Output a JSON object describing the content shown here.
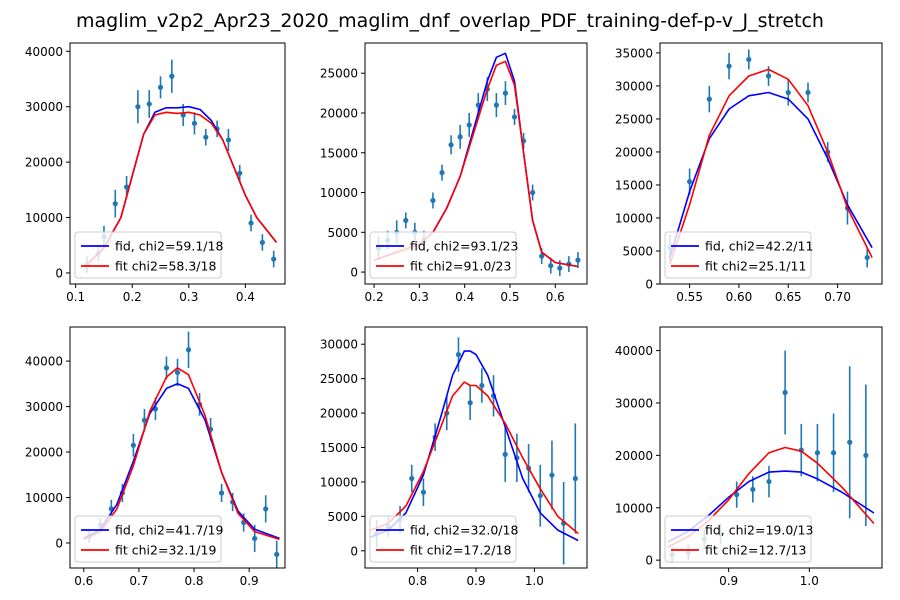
{
  "figure": {
    "title": "maglim_v2p2_Apr23_2020_maglim_dnf_overlap_PDF_training-def-p-v_J_stretch"
  },
  "colors": {
    "fid": "#0000ff",
    "fit": "#ff0000",
    "data": "#1f77b4"
  },
  "chart_data": [
    {
      "type": "scatter",
      "xlim": [
        0.09,
        0.47
      ],
      "ylim": [
        -2000,
        41500
      ],
      "xticks": [
        "0.1",
        "0.2",
        "0.3",
        "0.4"
      ],
      "xtick_values": [
        0.1,
        0.2,
        0.3,
        0.4
      ],
      "yticks": [
        "0",
        "10000",
        "20000",
        "30000",
        "40000"
      ],
      "ytick_values": [
        0,
        10000,
        20000,
        30000,
        40000
      ],
      "legend": {
        "placement": "lower-left",
        "entries": [
          "fid, chi2=59.1/18",
          "fit chi2=58.3/18"
        ]
      },
      "points": {
        "x": [
          0.12,
          0.14,
          0.15,
          0.17,
          0.19,
          0.21,
          0.23,
          0.25,
          0.27,
          0.29,
          0.31,
          0.33,
          0.35,
          0.37,
          0.39,
          0.41,
          0.43,
          0.45
        ],
        "y": [
          1500,
          3500,
          6500,
          12500,
          15500,
          30000,
          30500,
          33500,
          35500,
          28500,
          27000,
          24500,
          26000,
          24000,
          18000,
          9000,
          5500,
          2500
        ],
        "err": [
          1500,
          1500,
          2000,
          2500,
          2000,
          3000,
          2500,
          2000,
          3000,
          2000,
          2000,
          1500,
          1500,
          2000,
          1500,
          1500,
          1500,
          1500
        ]
      },
      "series": [
        {
          "name": "fid, chi2=59.1/18",
          "x": [
            0.12,
            0.15,
            0.18,
            0.2,
            0.22,
            0.24,
            0.26,
            0.28,
            0.3,
            0.32,
            0.34,
            0.36,
            0.38,
            0.4,
            0.42,
            0.455
          ],
          "y": [
            1500,
            4500,
            10000,
            17500,
            25000,
            29000,
            29800,
            29800,
            30000,
            29500,
            27500,
            24000,
            19000,
            14000,
            10000,
            5500
          ]
        },
        {
          "name": "fit chi2=58.3/18",
          "x": [
            0.12,
            0.15,
            0.18,
            0.2,
            0.22,
            0.24,
            0.26,
            0.28,
            0.3,
            0.32,
            0.34,
            0.36,
            0.38,
            0.4,
            0.42,
            0.455
          ],
          "y": [
            1500,
            4500,
            10000,
            17500,
            25000,
            28500,
            29000,
            28800,
            29000,
            28500,
            27000,
            24000,
            19000,
            14000,
            10000,
            5500
          ]
        }
      ]
    },
    {
      "type": "scatter",
      "xlim": [
        0.18,
        0.67
      ],
      "ylim": [
        -1500,
        28800
      ],
      "xticks": [
        "0.2",
        "0.3",
        "0.4",
        "0.5",
        "0.6"
      ],
      "xtick_values": [
        0.2,
        0.3,
        0.4,
        0.5,
        0.6
      ],
      "yticks": [
        "0",
        "5000",
        "10000",
        "15000",
        "20000",
        "25000"
      ],
      "ytick_values": [
        0,
        5000,
        10000,
        15000,
        20000,
        25000
      ],
      "legend": {
        "placement": "lower-left",
        "entries": [
          "fid, chi2=93.1/23",
          "fit chi2=91.0/23"
        ]
      },
      "points": {
        "x": [
          0.21,
          0.23,
          0.25,
          0.27,
          0.29,
          0.31,
          0.33,
          0.35,
          0.37,
          0.39,
          0.41,
          0.43,
          0.45,
          0.47,
          0.49,
          0.51,
          0.53,
          0.55,
          0.57,
          0.59,
          0.61,
          0.63,
          0.65
        ],
        "y": [
          3000,
          4000,
          5000,
          6500,
          5000,
          4000,
          9000,
          12500,
          16000,
          17000,
          18500,
          21000,
          23000,
          21000,
          22500,
          19500,
          16500,
          10000,
          2000,
          800,
          500,
          1000,
          1500
        ],
        "err": [
          1500,
          1200,
          1500,
          1000,
          1200,
          1200,
          1000,
          1000,
          1200,
          1500,
          1500,
          1500,
          1500,
          1500,
          1500,
          1000,
          1000,
          1000,
          1000,
          1000,
          1000,
          1000,
          1000
        ]
      },
      "series": [
        {
          "name": "fid, chi2=93.1/23",
          "x": [
            0.2,
            0.25,
            0.3,
            0.33,
            0.36,
            0.39,
            0.42,
            0.45,
            0.47,
            0.49,
            0.51,
            0.53,
            0.55,
            0.57,
            0.6,
            0.65
          ],
          "y": [
            1500,
            2500,
            3500,
            5000,
            8000,
            12000,
            18000,
            24000,
            27000,
            27500,
            24000,
            15000,
            6500,
            2500,
            1200,
            700
          ]
        },
        {
          "name": "fit chi2=91.0/23",
          "x": [
            0.2,
            0.25,
            0.3,
            0.33,
            0.36,
            0.39,
            0.42,
            0.45,
            0.47,
            0.49,
            0.51,
            0.53,
            0.55,
            0.57,
            0.6,
            0.65
          ],
          "y": [
            1500,
            2500,
            3500,
            5000,
            8000,
            12000,
            17500,
            23000,
            26000,
            26500,
            23500,
            15000,
            6500,
            2500,
            1200,
            700
          ]
        }
      ]
    },
    {
      "type": "scatter",
      "xlim": [
        0.52,
        0.745
      ],
      "ylim": [
        0,
        36500
      ],
      "xticks": [
        "0.55",
        "0.60",
        "0.65",
        "0.70"
      ],
      "xtick_values": [
        0.55,
        0.6,
        0.65,
        0.7
      ],
      "yticks": [
        "0",
        "5000",
        "10000",
        "15000",
        "20000",
        "25000",
        "30000",
        "35000"
      ],
      "ytick_values": [
        0,
        5000,
        10000,
        15000,
        20000,
        25000,
        30000,
        35000
      ],
      "legend": {
        "placement": "lower-left",
        "entries": [
          "fid, chi2=42.2/11",
          "fit chi2=25.1/11"
        ]
      },
      "points": {
        "x": [
          0.53,
          0.55,
          0.57,
          0.59,
          0.61,
          0.63,
          0.65,
          0.67,
          0.69,
          0.71,
          0.73
        ],
        "y": [
          5500,
          15500,
          28000,
          33000,
          34000,
          31500,
          29000,
          29000,
          20000,
          11500,
          4000
        ],
        "err": [
          2000,
          2000,
          2000,
          2000,
          1500,
          1500,
          2000,
          1500,
          1500,
          2500,
          1500
        ]
      },
      "series": [
        {
          "name": "fid, chi2=42.2/11",
          "x": [
            0.53,
            0.55,
            0.57,
            0.59,
            0.61,
            0.63,
            0.65,
            0.67,
            0.69,
            0.71,
            0.735
          ],
          "y": [
            4000,
            14000,
            22000,
            26500,
            28500,
            29000,
            28000,
            25000,
            19000,
            12000,
            5500
          ]
        },
        {
          "name": "fit chi2=25.1/11",
          "x": [
            0.53,
            0.55,
            0.57,
            0.59,
            0.61,
            0.63,
            0.65,
            0.67,
            0.69,
            0.71,
            0.735
          ],
          "y": [
            3000,
            12000,
            22500,
            28500,
            31500,
            32500,
            31000,
            27000,
            20000,
            11500,
            4000
          ]
        }
      ]
    },
    {
      "type": "scatter",
      "xlim": [
        0.575,
        0.965
      ],
      "ylim": [
        -5500,
        47500
      ],
      "xticks": [
        "0.6",
        "0.7",
        "0.8",
        "0.9"
      ],
      "xtick_values": [
        0.6,
        0.7,
        0.8,
        0.9
      ],
      "yticks": [
        "0",
        "10000",
        "20000",
        "30000",
        "40000"
      ],
      "ytick_values": [
        0,
        10000,
        20000,
        30000,
        40000
      ],
      "legend": {
        "placement": "lower-left",
        "entries": [
          "fid, chi2=41.7/19",
          "fit chi2=32.1/19"
        ]
      },
      "points": {
        "x": [
          0.61,
          0.63,
          0.65,
          0.67,
          0.69,
          0.71,
          0.73,
          0.75,
          0.77,
          0.79,
          0.81,
          0.83,
          0.85,
          0.87,
          0.89,
          0.91,
          0.93,
          0.95
        ],
        "y": [
          1500,
          4000,
          7500,
          11000,
          21500,
          27000,
          29500,
          38500,
          37500,
          42500,
          30500,
          25000,
          11000,
          9000,
          4500,
          1000,
          7500,
          -2500
        ],
        "err": [
          1500,
          1500,
          2000,
          2000,
          2500,
          2500,
          2500,
          2500,
          3000,
          4000,
          2500,
          2500,
          2000,
          2000,
          2000,
          3000,
          3000,
          3000
        ]
      },
      "series": [
        {
          "name": "fid, chi2=41.7/19",
          "x": [
            0.6,
            0.63,
            0.66,
            0.69,
            0.72,
            0.75,
            0.77,
            0.79,
            0.82,
            0.85,
            0.88,
            0.91,
            0.955
          ],
          "y": [
            1000,
            3000,
            8500,
            18000,
            28500,
            34000,
            35000,
            34000,
            27000,
            15500,
            7000,
            3000,
            1000
          ]
        },
        {
          "name": "fit chi2=32.1/19",
          "x": [
            0.6,
            0.63,
            0.66,
            0.69,
            0.72,
            0.75,
            0.77,
            0.79,
            0.82,
            0.85,
            0.88,
            0.91,
            0.955
          ],
          "y": [
            800,
            2500,
            7500,
            17000,
            29000,
            36500,
            38500,
            37000,
            28000,
            15500,
            6500,
            2500,
            800
          ]
        }
      ]
    },
    {
      "type": "scatter",
      "xlim": [
        0.71,
        1.09
      ],
      "ylim": [
        -2500,
        32500
      ],
      "xticks": [
        "0.8",
        "0.9",
        "1.0"
      ],
      "xtick_values": [
        0.8,
        0.9,
        1.0
      ],
      "yticks": [
        "0",
        "5000",
        "10000",
        "15000",
        "20000",
        "25000",
        "30000"
      ],
      "ytick_values": [
        0,
        5000,
        10000,
        15000,
        20000,
        25000,
        30000
      ],
      "legend": {
        "placement": "lower-left",
        "entries": [
          "fid, chi2=32.0/18",
          "fit chi2=17.2/18"
        ]
      },
      "points": {
        "x": [
          0.73,
          0.75,
          0.77,
          0.79,
          0.81,
          0.83,
          0.85,
          0.87,
          0.89,
          0.91,
          0.93,
          0.95,
          0.97,
          0.99,
          1.01,
          1.03,
          1.05,
          1.07
        ],
        "y": [
          2500,
          3500,
          4500,
          10500,
          8500,
          16500,
          20000,
          28500,
          21500,
          24000,
          22500,
          14000,
          13500,
          12000,
          8000,
          11000,
          4000,
          10500
        ],
        "err": [
          2000,
          1500,
          2000,
          2000,
          2000,
          2000,
          2500,
          2500,
          2500,
          2500,
          3000,
          4000,
          3500,
          3500,
          4500,
          5000,
          6000,
          8000
        ]
      },
      "series": [
        {
          "name": "fid, chi2=32.0/18",
          "x": [
            0.72,
            0.75,
            0.78,
            0.81,
            0.84,
            0.86,
            0.88,
            0.89,
            0.9,
            0.92,
            0.95,
            0.98,
            1.01,
            1.04,
            1.075
          ],
          "y": [
            2000,
            3000,
            5500,
            11000,
            19500,
            25500,
            29000,
            29000,
            28500,
            25500,
            18000,
            10500,
            5500,
            3000,
            1500
          ]
        },
        {
          "name": "fit chi2=17.2/18",
          "x": [
            0.72,
            0.75,
            0.78,
            0.81,
            0.84,
            0.86,
            0.88,
            0.89,
            0.9,
            0.92,
            0.95,
            0.98,
            1.01,
            1.04,
            1.075
          ],
          "y": [
            3000,
            4000,
            6500,
            11500,
            18000,
            22500,
            24500,
            24000,
            24000,
            22500,
            18500,
            13500,
            9000,
            5000,
            2500
          ]
        }
      ]
    },
    {
      "type": "scatter",
      "xlim": [
        0.815,
        1.09
      ],
      "ylim": [
        -1500,
        44500
      ],
      "xticks": [
        "0.9",
        "1.0"
      ],
      "xtick_values": [
        0.9,
        1.0
      ],
      "yticks": [
        "0",
        "10000",
        "20000",
        "30000",
        "40000"
      ],
      "ytick_values": [
        0,
        10000,
        20000,
        30000,
        40000
      ],
      "legend": {
        "placement": "lower-left",
        "entries": [
          "fid, chi2=19.0/13",
          "fit chi2=12.7/13"
        ]
      },
      "points": {
        "x": [
          0.83,
          0.85,
          0.87,
          0.89,
          0.91,
          0.93,
          0.95,
          0.97,
          0.99,
          1.01,
          1.03,
          1.05,
          1.07
        ],
        "y": [
          1000,
          1500,
          4000,
          5000,
          12500,
          13500,
          15000,
          32000,
          21000,
          20500,
          20500,
          22500,
          20000
        ],
        "err": [
          1500,
          1500,
          2000,
          2000,
          2500,
          2500,
          3000,
          8000,
          5000,
          5500,
          7500,
          14500,
          13500
        ]
      },
      "series": [
        {
          "name": "fid, chi2=19.0/13",
          "x": [
            0.825,
            0.85,
            0.875,
            0.9,
            0.925,
            0.95,
            0.97,
            0.99,
            1.01,
            1.04,
            1.08
          ],
          "y": [
            3500,
            5500,
            8500,
            12000,
            15000,
            16800,
            17000,
            16800,
            15500,
            13000,
            9000
          ]
        },
        {
          "name": "fit chi2=12.7/13",
          "x": [
            0.825,
            0.85,
            0.875,
            0.9,
            0.925,
            0.95,
            0.97,
            0.99,
            1.01,
            1.04,
            1.08
          ],
          "y": [
            2500,
            4500,
            7500,
            11500,
            16500,
            20500,
            21500,
            20800,
            18500,
            14000,
            7000
          ]
        }
      ]
    }
  ]
}
